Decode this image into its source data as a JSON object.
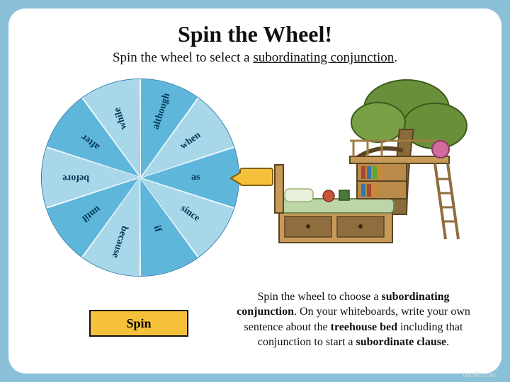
{
  "title": {
    "text": "Spin the Wheel!",
    "fontsize": 32
  },
  "subtitle": {
    "pre": "Spin the wheel to select a ",
    "term": "subordinating conjunction",
    "post": ".",
    "fontsize": 19
  },
  "wheel": {
    "segments": [
      {
        "label": "as",
        "color": "#5eb6db"
      },
      {
        "label": "since",
        "color": "#a8d7ea"
      },
      {
        "label": "if",
        "color": "#5eb6db"
      },
      {
        "label": "because",
        "color": "#a8d7ea"
      },
      {
        "label": "until",
        "color": "#5eb6db"
      },
      {
        "label": "before",
        "color": "#a8d7ea"
      },
      {
        "label": "after",
        "color": "#5eb6db"
      },
      {
        "label": "while",
        "color": "#a8d7ea"
      },
      {
        "label": "although",
        "color": "#5eb6db"
      },
      {
        "label": "when",
        "color": "#a8d7ea"
      }
    ],
    "label_color": "#003a56",
    "border_color": "#2e7ba8"
  },
  "spin_button": {
    "label": "Spin"
  },
  "indicator": {
    "bg": "#f6c13a",
    "border": "#806014"
  },
  "instructions": {
    "parts": [
      {
        "t": "Spin the wheel to choose a "
      },
      {
        "t": "subordinating conjunction",
        "b": true
      },
      {
        "t": ". On your whiteboards, write your own sentence about the "
      },
      {
        "t": "treehouse bed",
        "b": true
      },
      {
        "t": " including that conjunction to start a "
      },
      {
        "t": "subordinate clause",
        "b": true
      },
      {
        "t": "."
      }
    ],
    "fontsize": 16
  },
  "illustration": {
    "desc": "treehouse-bed",
    "tree_trunk": "#8a6b3b",
    "tree_canopy": "#6a8f3a",
    "bed_frame": "#c79a58",
    "bed_drawer": "#8f6d3e",
    "mattress": "#bcd6a8",
    "ladder": "#c79a58",
    "rail": "#a07c44",
    "ball": "#d36aa0"
  },
  "watermark": "twinkl.com"
}
